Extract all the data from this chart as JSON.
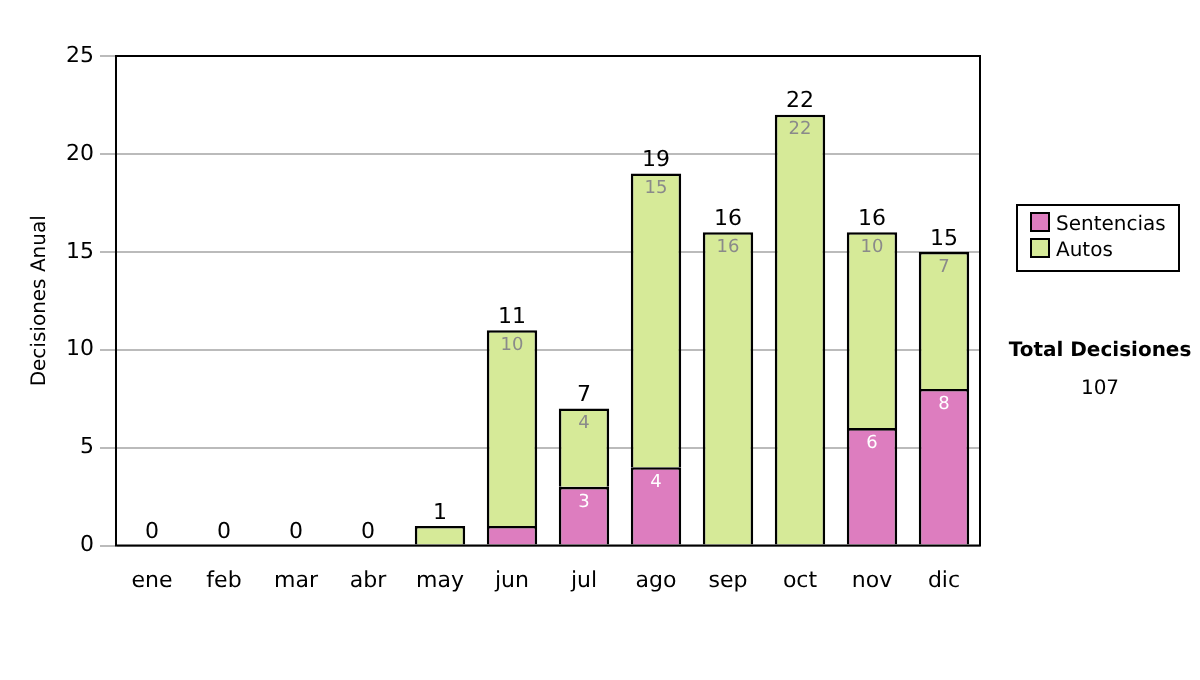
{
  "chart_data": {
    "type": "bar",
    "stacked": true,
    "ylabel": "Decisiones Anual",
    "categories": [
      "ene",
      "feb",
      "mar",
      "abr",
      "may",
      "jun",
      "jul",
      "ago",
      "sep",
      "oct",
      "nov",
      "dic"
    ],
    "series": [
      {
        "name": "Sentencias",
        "color": "#dd7dbf",
        "values": [
          0,
          0,
          0,
          0,
          0,
          1,
          3,
          4,
          0,
          0,
          6,
          8
        ],
        "value_labels": [
          null,
          null,
          null,
          null,
          null,
          null,
          "3",
          "4",
          null,
          null,
          "6",
          "8"
        ]
      },
      {
        "name": "Autos",
        "color": "#d6ea98",
        "values": [
          0,
          0,
          0,
          0,
          1,
          10,
          4,
          15,
          16,
          22,
          10,
          7
        ],
        "value_labels": [
          null,
          null,
          null,
          null,
          null,
          "10",
          "4",
          "15",
          "16",
          "22",
          "10",
          "7"
        ]
      }
    ],
    "totals": [
      "0",
      "0",
      "0",
      "0",
      "1",
      "11",
      "7",
      "19",
      "16",
      "22",
      "16",
      "15"
    ],
    "ylim": [
      0,
      25
    ],
    "yticks": [
      0,
      5,
      10,
      15,
      20,
      25
    ],
    "grid": "y",
    "legend": "right",
    "annotations": [
      "Total Decisiones",
      "107"
    ]
  }
}
